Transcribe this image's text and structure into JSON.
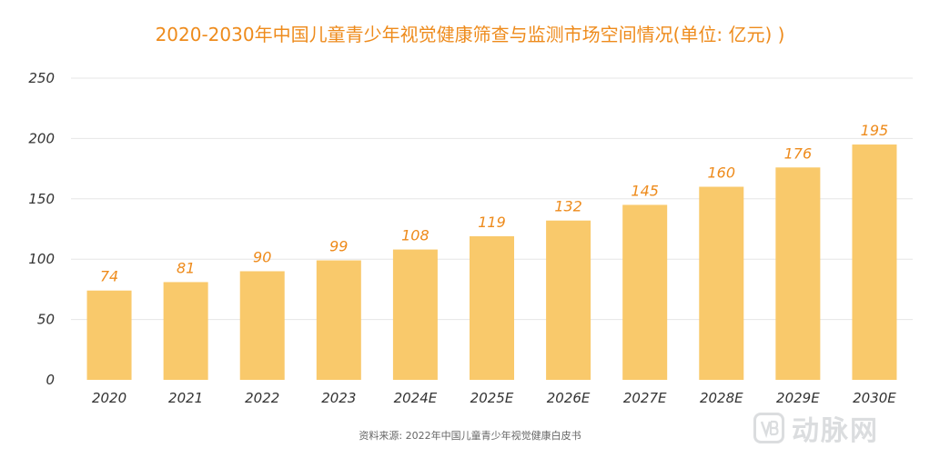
{
  "chart_data": {
    "type": "bar",
    "title": "2020-2030年中国儿童青少年视觉健康筛查与监测市场空间情况(单位: 亿元) )",
    "categories": [
      "2020",
      "2021",
      "2022",
      "2023",
      "2024E",
      "2025E",
      "2026E",
      "2027E",
      "2028E",
      "2029E",
      "2030E"
    ],
    "values": [
      74,
      81,
      90,
      99,
      108,
      119,
      132,
      145,
      160,
      176,
      195
    ],
    "data_labels": [
      "74",
      "81",
      "90",
      "99",
      "108",
      "119",
      "132",
      "145",
      "160",
      "176",
      "195"
    ],
    "yticks": [
      "0",
      "50",
      "100",
      "150",
      "200",
      "250"
    ],
    "ylim": [
      0,
      250
    ],
    "grid": true,
    "legend": "none",
    "colors": {
      "bar": "#f9c96b",
      "data_label": "#ee8b1c",
      "title": "#ee8b1c",
      "grid": "#e6e6e6",
      "axis_text": "#333333"
    }
  },
  "source": "资料来源: 2022年中国儿童青少年视觉健康白皮书",
  "watermark": {
    "icon": "vb-logo-icon",
    "text": "动脉网"
  }
}
